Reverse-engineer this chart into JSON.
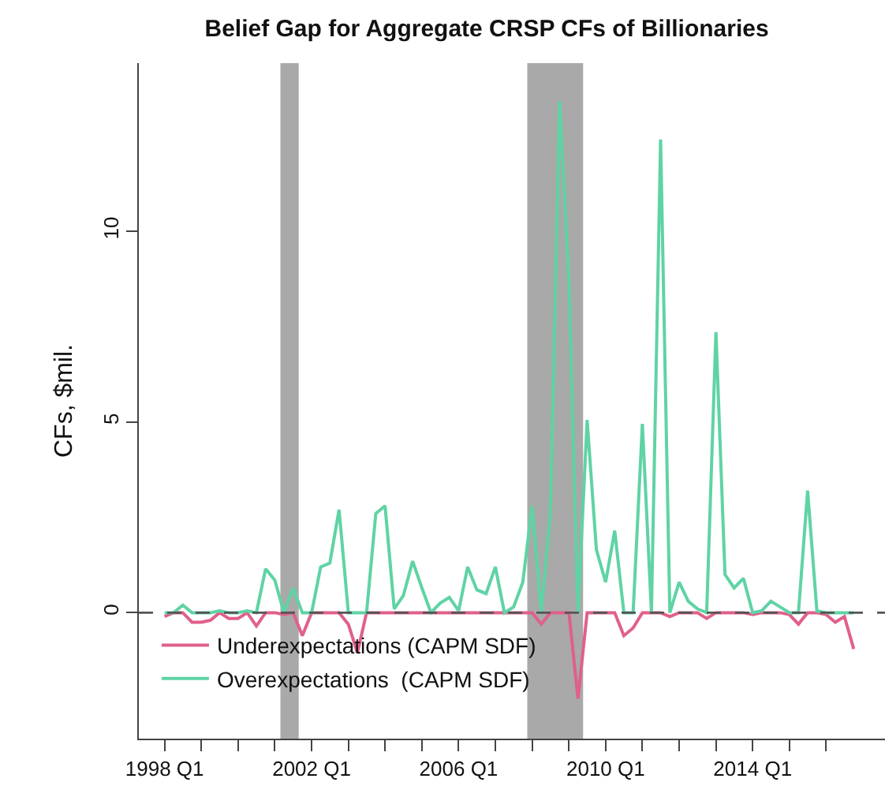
{
  "chart_data": {
    "type": "line",
    "title": "Belief Gap for Aggregate CRSP CFs of Billionaries",
    "ylabel": "CFs, $mil.",
    "x": [
      "1998-01",
      "1998-04",
      "1998-07",
      "1998-10",
      "1999-01",
      "1999-04",
      "1999-07",
      "1999-10",
      "2000-01",
      "2000-04",
      "2000-07",
      "2000-10",
      "2001-01",
      "2001-04",
      "2001-07",
      "2001-10",
      "2002-01",
      "2002-04",
      "2002-07",
      "2002-10",
      "2003-01",
      "2003-04",
      "2003-07",
      "2003-10",
      "2004-01",
      "2004-04",
      "2004-07",
      "2004-10",
      "2005-01",
      "2005-04",
      "2005-07",
      "2005-10",
      "2006-01",
      "2006-04",
      "2006-07",
      "2006-10",
      "2007-01",
      "2007-04",
      "2007-07",
      "2007-10",
      "2008-01",
      "2008-04",
      "2008-07",
      "2008-10",
      "2009-01",
      "2009-04",
      "2009-07",
      "2009-10",
      "2010-01",
      "2010-04",
      "2010-07",
      "2010-10",
      "2011-01",
      "2011-04",
      "2011-07",
      "2011-10",
      "2012-01",
      "2012-04",
      "2012-07",
      "2012-10",
      "2013-01",
      "2013-04",
      "2013-07",
      "2013-10",
      "2014-01",
      "2014-04",
      "2014-07",
      "2014-10",
      "2015-01",
      "2015-04",
      "2015-07",
      "2015-10",
      "2016-01",
      "2016-04",
      "2016-07",
      "2016-10"
    ],
    "series": [
      {
        "name": "Underexpectations (CAPM SDF)",
        "color": "#e0608a",
        "values": [
          -0.1,
          0,
          0,
          -0.25,
          -0.25,
          -0.2,
          0,
          -0.15,
          -0.15,
          0,
          -0.35,
          0,
          0,
          -0.05,
          0,
          -0.6,
          0,
          0,
          0,
          0,
          -0.3,
          -1.05,
          0,
          0,
          0,
          0,
          0,
          0,
          0,
          0,
          0,
          0,
          0,
          0,
          0,
          0,
          0,
          0,
          0,
          0,
          0,
          -0.3,
          0,
          0,
          0,
          -2.25,
          0,
          0,
          0,
          0,
          -0.6,
          -0.4,
          0,
          0,
          0,
          -0.1,
          0,
          0,
          0,
          -0.15,
          0,
          0,
          0,
          0,
          -0.05,
          0,
          0,
          0,
          -0.05,
          -0.3,
          0,
          0,
          -0.05,
          -0.25,
          -0.1,
          -0.95
        ]
      },
      {
        "name": "Overexpectations  (CAPM SDF)",
        "color": "#5fd3a4",
        "values": [
          0,
          0,
          0.2,
          0,
          0,
          0,
          0.05,
          0,
          0,
          0.05,
          0,
          1.15,
          0.85,
          0,
          0.65,
          0,
          0,
          1.2,
          1.3,
          2.7,
          0,
          0,
          0,
          2.6,
          2.8,
          0.1,
          0.45,
          1.35,
          0.65,
          0,
          0.25,
          0.4,
          0.05,
          1.2,
          0.6,
          0.5,
          1.2,
          0,
          0.15,
          0.8,
          2.8,
          0,
          2.6,
          13.4,
          8.7,
          0,
          5.05,
          1.65,
          0.8,
          2.15,
          0,
          0,
          4.95,
          0,
          12.4,
          0,
          0.8,
          0.3,
          0.1,
          0,
          7.35,
          1.0,
          0.65,
          0.9,
          0,
          0.05,
          0.3,
          0.15,
          0,
          0,
          3.2,
          0.05,
          0,
          0,
          0,
          0
        ]
      }
    ],
    "xlim": [
      "1997-04-20",
      "2017-08-08"
    ],
    "xticks": [
      {
        "value": "1998-01",
        "label": "1998 Q1"
      },
      {
        "value": "1999-01",
        "label": null
      },
      {
        "value": "2000-01",
        "label": null
      },
      {
        "value": "2001-01",
        "label": null
      },
      {
        "value": "2002-01",
        "label": "2002 Q1"
      },
      {
        "value": "2003-01",
        "label": null
      },
      {
        "value": "2004-01",
        "label": null
      },
      {
        "value": "2005-01",
        "label": null
      },
      {
        "value": "2006-01",
        "label": "2006 Q1"
      },
      {
        "value": "2007-01",
        "label": null
      },
      {
        "value": "2008-01",
        "label": null
      },
      {
        "value": "2009-01",
        "label": null
      },
      {
        "value": "2010-01",
        "label": "2010 Q1"
      },
      {
        "value": "2011-01",
        "label": null
      },
      {
        "value": "2012-01",
        "label": null
      },
      {
        "value": "2013-01",
        "label": null
      },
      {
        "value": "2014-01",
        "label": "2014 Q1"
      },
      {
        "value": "2015-01",
        "label": null
      },
      {
        "value": "2016-01",
        "label": null
      }
    ],
    "ylim": [
      -3.3,
      14.4
    ],
    "yticks": [
      0,
      5,
      10
    ],
    "ref_lines": [
      {
        "axis": "y",
        "value": 0,
        "color": "#555555",
        "line_style": "dashed"
      }
    ],
    "bands": [
      {
        "axis": "x",
        "from": "2001-02-25",
        "to": "2001-08-26",
        "color": "#9a9a9a"
      },
      {
        "axis": "x",
        "from": "2007-11-14",
        "to": "2009-05-22",
        "color": "#9a9a9a"
      }
    ],
    "grid": false,
    "legend": "bottom left",
    "marker": "none",
    "line_style": "solid"
  }
}
